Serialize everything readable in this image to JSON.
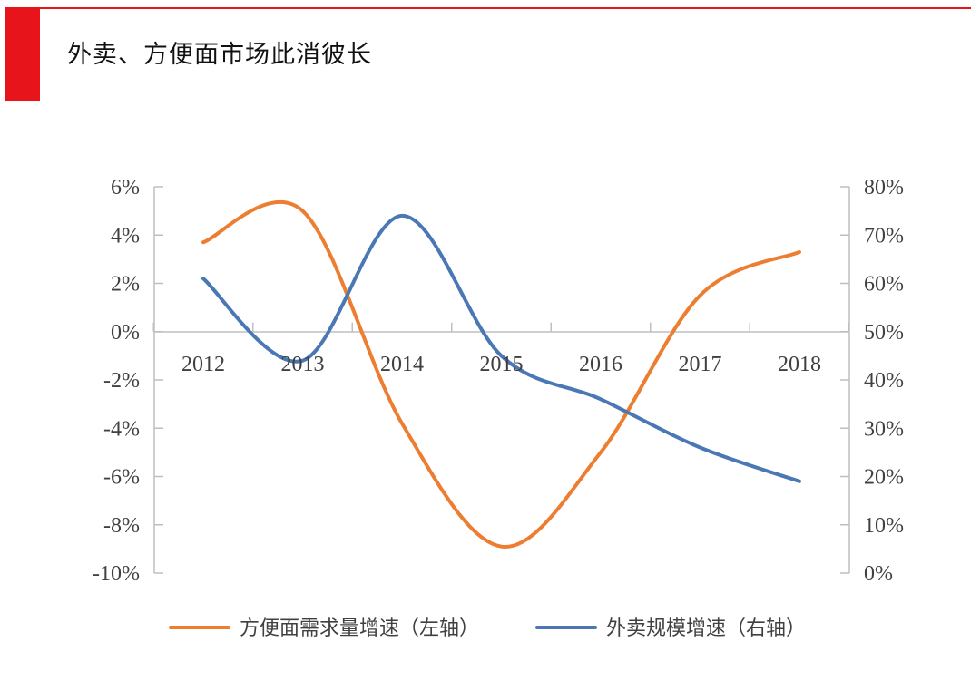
{
  "page": {
    "title": "外卖、方便面市场此消彼长",
    "accent_color": "#e8141b"
  },
  "chart_data": {
    "type": "line",
    "title": "",
    "x": [
      "2012",
      "2013",
      "2014",
      "2015",
      "2016",
      "2017",
      "2018"
    ],
    "y_left": {
      "ylim": [
        -10,
        6
      ],
      "ticks": [
        "6%",
        "4%",
        "2%",
        "0%",
        "-2%",
        "-4%",
        "-6%",
        "-8%",
        "-10%"
      ]
    },
    "y_right": {
      "ylim": [
        0,
        80
      ],
      "ticks": [
        "80%",
        "70%",
        "60%",
        "50%",
        "40%",
        "30%",
        "20%",
        "10%",
        "0%"
      ]
    },
    "series": [
      {
        "name": "方便面需求量增速（左轴）",
        "axis": "left",
        "color": "#ed7d31",
        "values": [
          3.7,
          5.0,
          -3.8,
          -8.9,
          -5.0,
          1.5,
          3.3
        ]
      },
      {
        "name": "外卖规模增速（右轴）",
        "axis": "right",
        "color": "#4a78b5",
        "values": [
          61,
          44,
          74,
          45,
          36,
          26,
          19
        ]
      }
    ],
    "grid": false,
    "legend_position": "bottom"
  }
}
